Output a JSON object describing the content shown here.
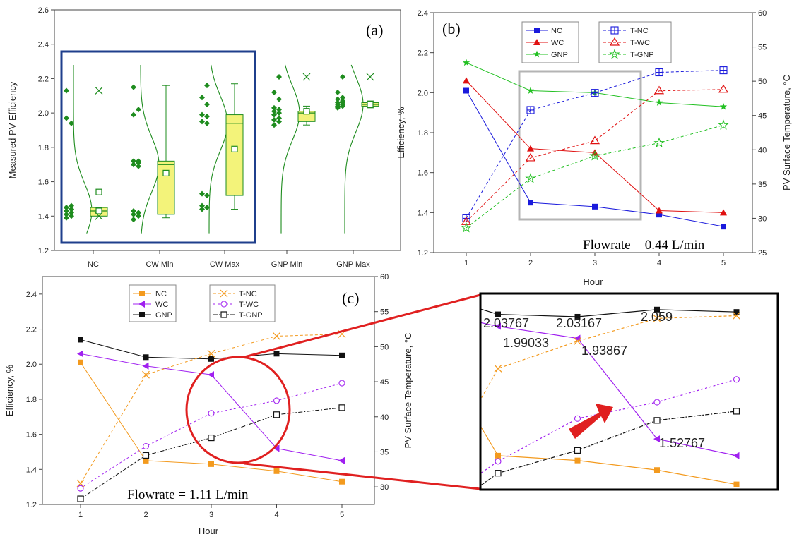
{
  "panel_labels": [
    "(a)",
    "(b)",
    "(c)"
  ],
  "colors": {
    "a_green": "#1e8c1e",
    "a_box": "#f3f37a",
    "a_frame": "#1f3f8c",
    "b_nc": "#1a1adc",
    "b_wc": "#e01010",
    "b_gnp": "#22c022",
    "b_highlight": "#b4b4b4",
    "c_nc": "#f39a1e",
    "c_wc": "#a020f0",
    "c_gnp": "#111111",
    "c_circle": "#e02020"
  },
  "chart_data": [
    {
      "id": "a",
      "type": "box",
      "panel_label": "(a)",
      "ylabel": "Measured PV Efficiency",
      "ylim": [
        1.2,
        2.6
      ],
      "yticks": [
        "1.2",
        "1.4",
        "1.6",
        "1.8",
        "2.0",
        "2.2",
        "2.4",
        "2.6"
      ],
      "categories": [
        "NC",
        "CW Min",
        "CW Max",
        "GNP Min",
        "GNP Max"
      ],
      "boxes": [
        {
          "q1": 1.4,
          "median": 1.43,
          "q3": 1.45,
          "mean": 1.43,
          "outlier_low": 1.4,
          "outlier_high": 2.13,
          "extra_mark": 1.54
        },
        {
          "q1": 1.41,
          "median": 1.7,
          "q3": 1.72,
          "mean": 1.65,
          "whisker_low": 1.39,
          "whisker_high": 2.16
        },
        {
          "q1": 1.52,
          "median": 1.94,
          "q3": 1.99,
          "mean": 1.79,
          "whisker_low": 1.44,
          "whisker_high": 2.17
        },
        {
          "q1": 1.95,
          "median": 2.0,
          "q3": 2.01,
          "mean": 2.01,
          "whisker_low": 1.93,
          "whisker_high": 2.04,
          "outlier_high": 2.21
        },
        {
          "q1": 2.04,
          "median": 2.05,
          "q3": 2.06,
          "mean": 2.05,
          "whisker_low": 2.03,
          "whisker_high": 2.07,
          "outlier_high": 2.21
        }
      ],
      "points": [
        [
          1.39,
          1.4,
          1.41,
          1.42,
          1.43,
          1.44,
          1.45,
          1.46,
          1.45,
          1.44,
          1.97,
          1.94,
          2.13
        ],
        [
          1.38,
          1.4,
          1.41,
          1.42,
          1.43,
          1.69,
          1.7,
          1.71,
          1.72,
          1.72,
          1.99,
          2.02,
          2.15
        ],
        [
          1.44,
          1.45,
          1.46,
          1.52,
          1.53,
          1.94,
          1.95,
          1.98,
          1.99,
          2.05,
          2.09,
          2.16
        ],
        [
          1.93,
          1.95,
          1.96,
          1.97,
          1.99,
          2.0,
          2.01,
          2.02,
          2.03,
          2.08,
          2.12,
          2.21
        ],
        [
          2.03,
          2.04,
          2.04,
          2.05,
          2.05,
          2.06,
          2.06,
          2.07,
          2.08,
          2.09,
          2.12,
          2.21
        ]
      ]
    },
    {
      "id": "b",
      "type": "line",
      "panel_label": "(b)",
      "xlabel": "Hour",
      "ylabel": "Efficiency, %",
      "y2label": "PV Surface Temperature, °C",
      "x": [
        1,
        2,
        3,
        4,
        5
      ],
      "ylim": [
        1.2,
        2.4
      ],
      "y2lim": [
        25,
        60
      ],
      "yticks": [
        "1.2",
        "1.4",
        "1.6",
        "1.8",
        "2.0",
        "2.2",
        "2.4"
      ],
      "y2ticks": [
        "25",
        "30",
        "35",
        "40",
        "45",
        "50",
        "55",
        "60"
      ],
      "annotation": "Flowrate = 0.44 L/min",
      "series": [
        {
          "name": "NC",
          "axis": "left",
          "values": [
            2.01,
            1.45,
            1.43,
            1.39,
            1.33
          ]
        },
        {
          "name": "WC",
          "axis": "left",
          "values": [
            2.06,
            1.72,
            1.7,
            1.41,
            1.4
          ]
        },
        {
          "name": "GNP",
          "axis": "left",
          "values": [
            2.15,
            2.01,
            2.0,
            1.95,
            1.93
          ]
        },
        {
          "name": "T-NC",
          "axis": "right",
          "values": [
            30.0,
            45.8,
            48.3,
            51.3,
            51.6
          ]
        },
        {
          "name": "T-WC",
          "axis": "right",
          "values": [
            29.5,
            38.8,
            41.3,
            48.6,
            48.8
          ]
        },
        {
          "name": "T-GNP",
          "axis": "right",
          "values": [
            28.6,
            35.8,
            39.1,
            41.0,
            43.6
          ]
        }
      ]
    },
    {
      "id": "c",
      "type": "line",
      "panel_label": "(c)",
      "xlabel": "Hour",
      "ylabel": "Efficiency, %",
      "y2label": "PV Surface Temperature, °C",
      "x": [
        1,
        2,
        3,
        4,
        5
      ],
      "ylim": [
        1.2,
        2.5
      ],
      "y2lim": [
        27.5,
        60
      ],
      "yticks": [
        "1.2",
        "1.4",
        "1.6",
        "1.8",
        "2.0",
        "2.2",
        "2.4"
      ],
      "y2ticks": [
        "30",
        "35",
        "40",
        "45",
        "50",
        "55",
        "60"
      ],
      "annotation": "Flowrate = 1.11 L/min",
      "series": [
        {
          "name": "NC",
          "axis": "left",
          "values": [
            2.01,
            1.45,
            1.43,
            1.39,
            1.33
          ]
        },
        {
          "name": "WC",
          "axis": "left",
          "values": [
            2.06,
            1.99,
            1.94,
            1.52,
            1.45
          ]
        },
        {
          "name": "GNP",
          "axis": "left",
          "values": [
            2.14,
            2.04,
            2.03,
            2.06,
            2.05
          ]
        },
        {
          "name": "T-NC",
          "axis": "right",
          "values": [
            30.5,
            46.0,
            49.0,
            51.5,
            51.8
          ]
        },
        {
          "name": "T-WC",
          "axis": "right",
          "values": [
            29.8,
            35.8,
            40.5,
            42.3,
            44.8
          ]
        },
        {
          "name": "T-GNP",
          "axis": "right",
          "values": [
            28.3,
            34.5,
            37.0,
            40.3,
            41.3
          ]
        }
      ],
      "zoom_labels": [
        "2.03767",
        "2.03167",
        "2.059",
        "1.99033",
        "1.93867",
        "1.52767"
      ]
    }
  ]
}
